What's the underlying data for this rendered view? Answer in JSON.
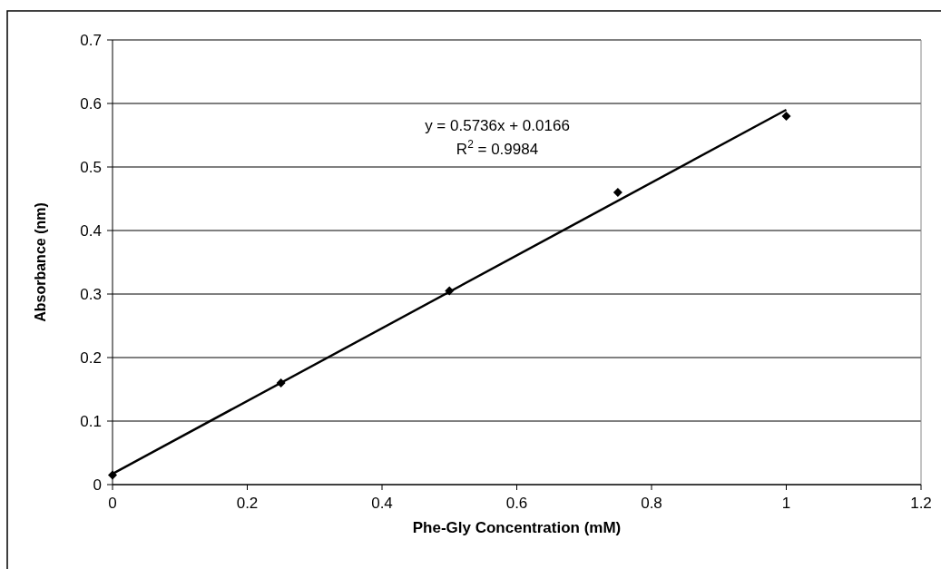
{
  "chart_data": {
    "type": "scatter",
    "xlabel": "Phe-Gly Concentration (mM)",
    "ylabel": "Absorbance (nm)",
    "x": [
      0,
      0.25,
      0.5,
      0.75,
      1
    ],
    "series": [
      {
        "color": "#000000",
        "marker": "diamond",
        "values": [
          0.015,
          0.16,
          0.305,
          0.46,
          0.58
        ]
      },
      {
        "type": "line",
        "color": "#000000",
        "marker": "none",
        "line_style": "solid",
        "x": [
          0,
          1
        ],
        "values": [
          0.017,
          0.59
        ]
      }
    ],
    "annotations": [
      "y = 0.5736x + 0.0166",
      "R$^{2}$ = 0.9984"
    ],
    "xlim": [
      0,
      1.2
    ],
    "xticks": [
      0,
      0.2,
      0.4,
      0.6,
      0.8,
      1,
      1.2
    ],
    "ylim": [
      0,
      0.7
    ],
    "yticks": [
      0,
      0.1,
      0.2,
      0.3,
      0.4,
      0.5,
      0.6,
      0.7
    ],
    "grid": "y"
  }
}
